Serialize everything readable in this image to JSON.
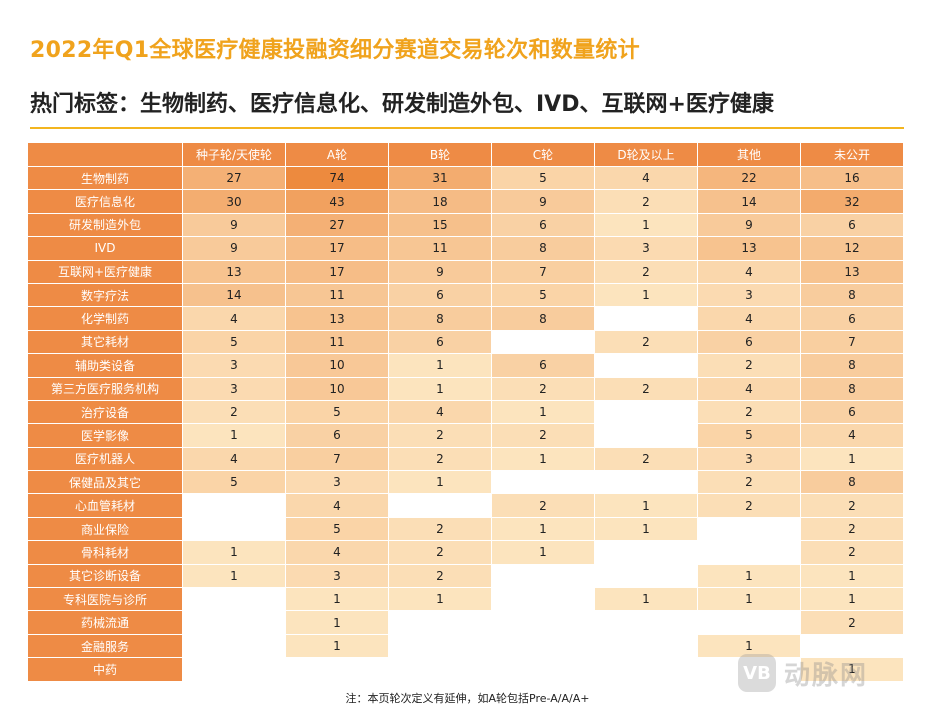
{
  "title": "2022年Q1全球医疗健康投融资细分赛道交易轮次和数量统计",
  "subtitle": "热门标签：生物制药、医疗信息化、研发制造外包、IVD、互联网+医疗健康",
  "footnote": "注：本页轮次定义有延伸，如A轮包括Pre-A/A/A+",
  "watermark": {
    "logo": "VB",
    "text": "动脉网"
  },
  "chart_data": {
    "type": "heatmap",
    "title": "2022年Q1全球医疗健康投融资细分赛道交易轮次和数量统计",
    "columns": [
      "种子轮/天使轮",
      "A轮",
      "B轮",
      "C轮",
      "D轮及以上",
      "其他",
      "未公开"
    ],
    "rows": [
      {
        "label": "生物制药",
        "values": [
          27,
          74,
          31,
          5,
          4,
          22,
          16
        ]
      },
      {
        "label": "医疗信息化",
        "values": [
          30,
          43,
          18,
          9,
          2,
          14,
          32
        ]
      },
      {
        "label": "研发制造外包",
        "values": [
          9,
          27,
          15,
          6,
          1,
          9,
          6
        ]
      },
      {
        "label": "IVD",
        "values": [
          9,
          17,
          11,
          8,
          3,
          13,
          12
        ]
      },
      {
        "label": "互联网+医疗健康",
        "values": [
          13,
          17,
          9,
          7,
          2,
          4,
          13
        ]
      },
      {
        "label": "数字疗法",
        "values": [
          14,
          11,
          6,
          5,
          1,
          3,
          8
        ]
      },
      {
        "label": "化学制药",
        "values": [
          4,
          13,
          8,
          8,
          null,
          4,
          6
        ]
      },
      {
        "label": "其它耗材",
        "values": [
          5,
          11,
          6,
          null,
          2,
          6,
          7
        ]
      },
      {
        "label": "辅助类设备",
        "values": [
          3,
          10,
          1,
          6,
          null,
          2,
          8
        ]
      },
      {
        "label": "第三方医疗服务机构",
        "values": [
          3,
          10,
          1,
          2,
          2,
          4,
          8
        ]
      },
      {
        "label": "治疗设备",
        "values": [
          2,
          5,
          4,
          1,
          null,
          2,
          6
        ]
      },
      {
        "label": "医学影像",
        "values": [
          1,
          6,
          2,
          2,
          null,
          5,
          4
        ]
      },
      {
        "label": "医疗机器人",
        "values": [
          4,
          7,
          2,
          1,
          2,
          3,
          1
        ]
      },
      {
        "label": "保健品及其它",
        "values": [
          5,
          3,
          1,
          null,
          null,
          2,
          8
        ]
      },
      {
        "label": "心血管耗材",
        "values": [
          null,
          4,
          null,
          2,
          1,
          2,
          2
        ]
      },
      {
        "label": "商业保险",
        "values": [
          null,
          5,
          2,
          1,
          1,
          null,
          2
        ]
      },
      {
        "label": "骨科耗材",
        "values": [
          1,
          4,
          2,
          1,
          null,
          null,
          2
        ]
      },
      {
        "label": "其它诊断设备",
        "values": [
          1,
          3,
          2,
          null,
          null,
          1,
          1
        ]
      },
      {
        "label": "专科医院与诊所",
        "values": [
          null,
          1,
          1,
          null,
          1,
          1,
          1
        ]
      },
      {
        "label": "药械流通",
        "values": [
          null,
          1,
          null,
          null,
          null,
          null,
          2
        ]
      },
      {
        "label": "金融服务",
        "values": [
          null,
          1,
          null,
          null,
          null,
          1,
          null
        ]
      },
      {
        "label": "中药",
        "values": [
          null,
          null,
          null,
          null,
          null,
          null,
          1
        ]
      }
    ],
    "colors": {
      "header_bg": "#ee8b45",
      "label_bg": "#ee8b45",
      "empty_cell": "#ffffff",
      "scale_low": "#fff3d4",
      "scale_high": "#ed8a3e",
      "title": "#f0a31d",
      "rule": "#f3b51f"
    }
  }
}
